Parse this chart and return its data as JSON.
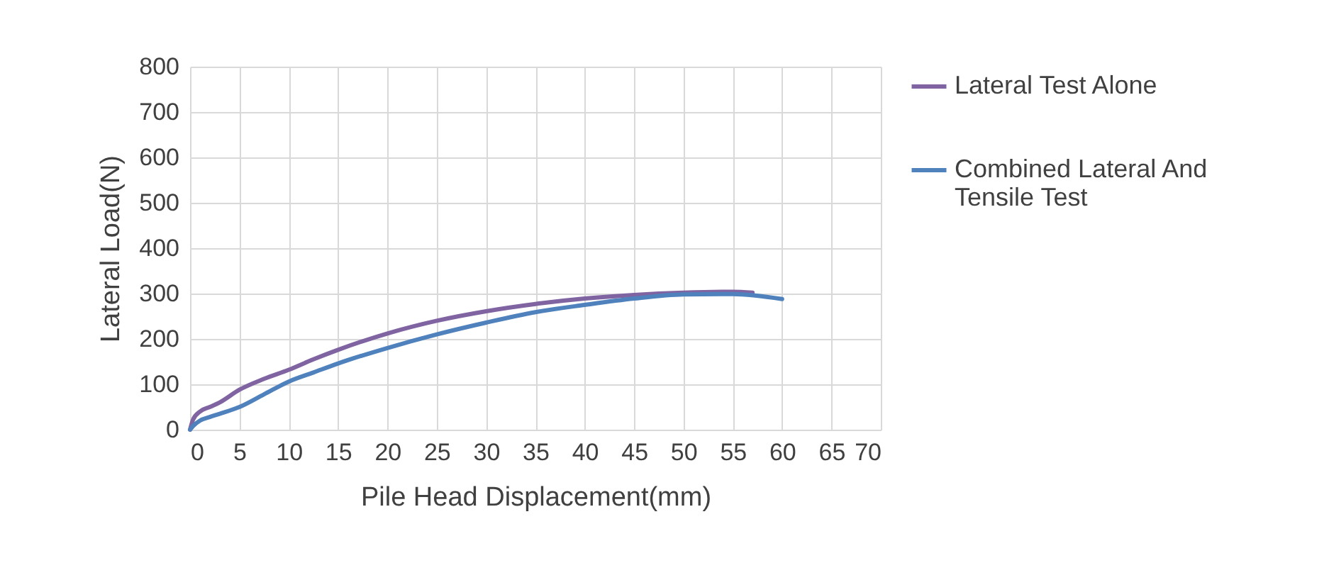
{
  "chart_data": {
    "type": "line",
    "xlabel": "Pile Head Displacement(mm)",
    "ylabel": "Lateral Load(N)",
    "xlim": [
      0,
      70
    ],
    "xticks": [
      0,
      5,
      10,
      15,
      20,
      25,
      30,
      35,
      40,
      45,
      50,
      55,
      60,
      65,
      70
    ],
    "ylim": [
      0,
      800
    ],
    "yticks": [
      0,
      100,
      200,
      300,
      400,
      500,
      600,
      700,
      800
    ],
    "grid": true,
    "legend": "right",
    "series": [
      {
        "name": "Lateral Test Alone",
        "color": "#8064a2",
        "x": [
          0,
          0.3,
          1,
          2,
          3,
          5,
          7.5,
          10,
          12.5,
          15,
          20,
          25,
          30,
          35,
          40,
          45,
          50,
          55,
          57
        ],
        "values": [
          0,
          22,
          40,
          50,
          60,
          88,
          112,
          132,
          155,
          176,
          212,
          240,
          261,
          277,
          289,
          297,
          302,
          304,
          302
        ]
      },
      {
        "name": "Combined Lateral And Tensile Test",
        "color": "#4f81bd",
        "x": [
          0,
          0.3,
          1,
          2,
          3,
          5,
          7.5,
          10,
          12.5,
          15,
          20,
          25,
          30,
          35,
          40,
          45,
          50,
          55,
          60
        ],
        "values": [
          0,
          8,
          20,
          28,
          35,
          50,
          78,
          106,
          126,
          146,
          180,
          210,
          236,
          259,
          275,
          289,
          298,
          299,
          288
        ]
      }
    ]
  }
}
